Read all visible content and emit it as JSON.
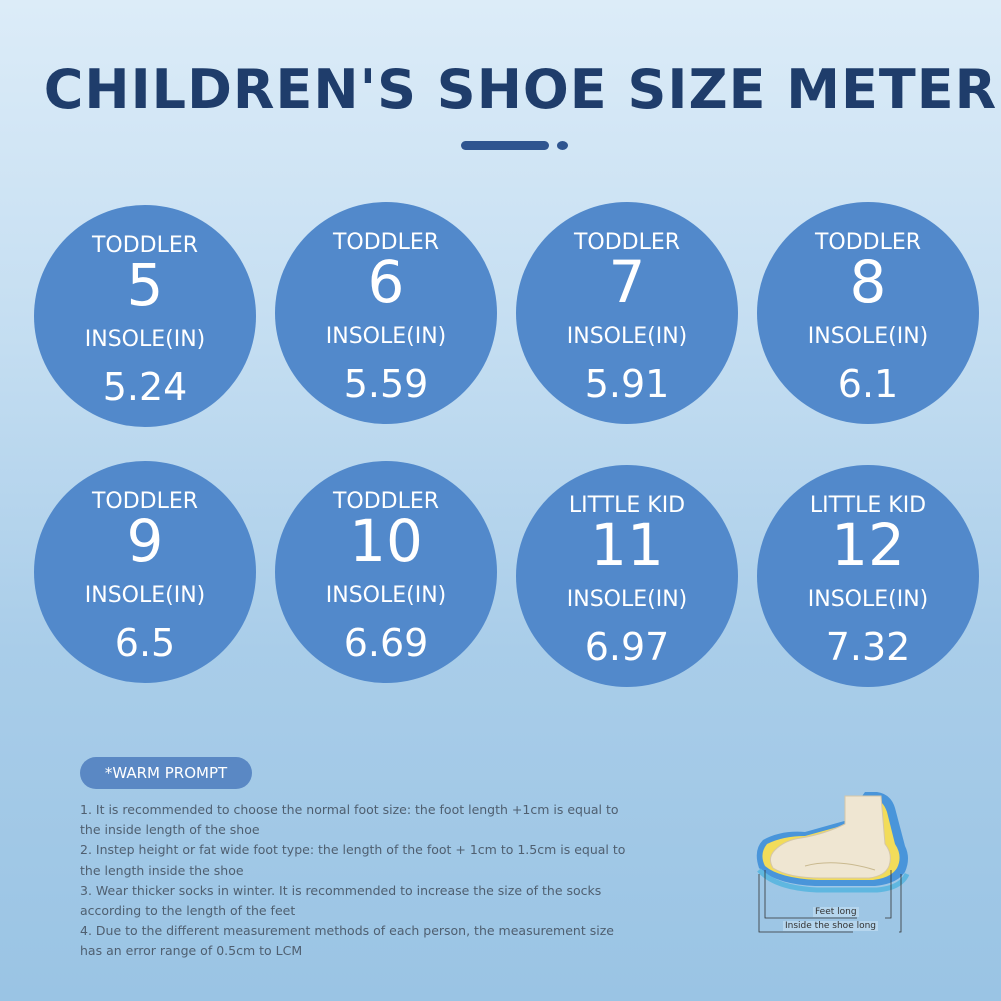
{
  "title": "CHILDREN'S SHOE SIZE METER",
  "sizes": [
    {
      "category": "TODDLER",
      "size": "5",
      "insole_label": "INSOLE(IN)",
      "insole": "5.24"
    },
    {
      "category": "TODDLER",
      "size": "6",
      "insole_label": "INSOLE(IN)",
      "insole": "5.59"
    },
    {
      "category": "TODDLER",
      "size": "7",
      "insole_label": "INSOLE(IN)",
      "insole": "5.91"
    },
    {
      "category": "TODDLER",
      "size": "8",
      "insole_label": "INSOLE(IN)",
      "insole": "6.1"
    },
    {
      "category": "TODDLER",
      "size": "9",
      "insole_label": "INSOLE(IN)",
      "insole": "6.5"
    },
    {
      "category": "TODDLER",
      "size": "10",
      "insole_label": "INSOLE(IN)",
      "insole": "6.69"
    },
    {
      "category": "LITTLE KID",
      "size": "11",
      "insole_label": "INSOLE(IN)",
      "insole": "6.97"
    },
    {
      "category": "LITTLE KID",
      "size": "12",
      "insole_label": "INSOLE(IN)",
      "insole": "7.32"
    }
  ],
  "prompt": {
    "label": "*WARM PROMPT",
    "notes": [
      "1. It is recommended to choose the normal foot size: the foot length +1cm is equal to the inside length of the shoe",
      "2. Instep height or fat wide foot type: the length of the foot + 1cm to 1.5cm is equal to the length inside the shoe",
      "3. Wear thicker socks in winter. It is recommended to increase the size of the socks according to the length of the feet",
      "4. Due to the different measurement methods of each person, the measurement size has an error range of 0.5cm to LCM"
    ]
  },
  "illustration": {
    "feet_long": "Feet long",
    "inside_shoe_long": "Inside the shoe long"
  },
  "colors": {
    "title": "#1f3d6b",
    "circle": "#5289cb",
    "pill": "#5a88c4"
  }
}
